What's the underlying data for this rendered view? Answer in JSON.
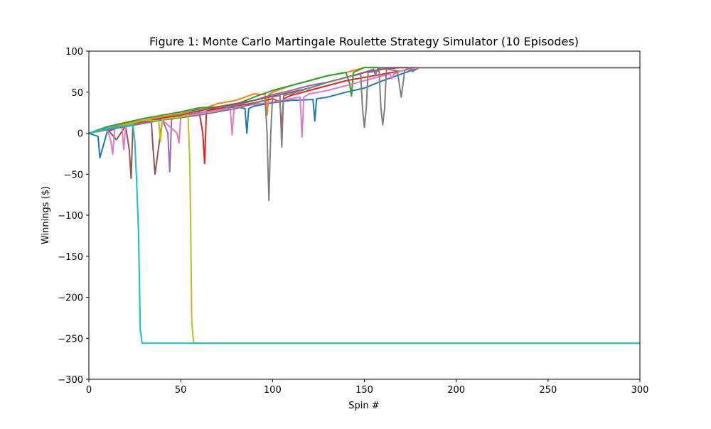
{
  "chart_data": {
    "type": "line",
    "title": "Figure 1: Monte Carlo Martingale Roulette Strategy Simulator (10 Episodes)",
    "xlabel": "Spin #",
    "ylabel": "Winnings ($)",
    "xlim": [
      0,
      300
    ],
    "ylim": [
      -300,
      100
    ],
    "x_ticks": [
      0,
      50,
      100,
      150,
      200,
      250,
      300
    ],
    "y_ticks": [
      -300,
      -250,
      -200,
      -150,
      -100,
      -50,
      0,
      50,
      100
    ],
    "x_tick_labels": [
      "0",
      "50",
      "100",
      "150",
      "200",
      "250",
      "300"
    ],
    "y_tick_labels": [
      "−300",
      "−250",
      "−200",
      "−150",
      "−100",
      "−50",
      "0",
      "50",
      "100"
    ],
    "grid": false,
    "legend": "none",
    "series": [
      {
        "color": "#1f77b4",
        "x": [
          0,
          5,
          6,
          10,
          14,
          15,
          20,
          25,
          30,
          40,
          50,
          60,
          70,
          80,
          85,
          86,
          87,
          90,
          100,
          110,
          122,
          123,
          124,
          130,
          140,
          150,
          160,
          175,
          180,
          300
        ],
        "y": [
          0,
          -4,
          -30,
          2,
          5,
          8,
          10,
          12,
          14,
          19,
          24,
          29,
          30,
          32,
          30,
          0,
          30,
          33,
          37,
          40,
          41,
          15,
          42,
          44,
          50,
          55,
          64,
          76,
          80,
          80
        ]
      },
      {
        "color": "#ff7f0e",
        "x": [
          0,
          10,
          20,
          30,
          40,
          50,
          60,
          70,
          80,
          90,
          96,
          97,
          98,
          100,
          110,
          120,
          130,
          140,
          150,
          160,
          170,
          180,
          300
        ],
        "y": [
          0,
          6,
          12,
          16,
          20,
          24,
          28,
          36,
          40,
          48,
          47,
          22,
          47,
          50,
          58,
          64,
          70,
          74,
          80,
          80,
          80,
          80,
          80
        ]
      },
      {
        "color": "#2ca02c",
        "x": [
          0,
          10,
          20,
          30,
          40,
          50,
          60,
          70,
          80,
          90,
          100,
          110,
          120,
          130,
          140,
          142,
          143,
          144,
          150,
          170,
          300
        ],
        "y": [
          0,
          8,
          13,
          18,
          22,
          26,
          31,
          32,
          35,
          44,
          52,
          58,
          64,
          70,
          74,
          60,
          45,
          74,
          80,
          80,
          80
        ]
      },
      {
        "color": "#d62728",
        "x": [
          0,
          10,
          20,
          30,
          40,
          50,
          60,
          62,
          63,
          64,
          70,
          80,
          90,
          100,
          104,
          105,
          106,
          110,
          120,
          130,
          140,
          150,
          160,
          170,
          180,
          300
        ],
        "y": [
          0,
          6,
          10,
          14,
          18,
          22,
          27,
          0,
          -37,
          27,
          30,
          33,
          37,
          42,
          38,
          5,
          42,
          46,
          52,
          58,
          64,
          68,
          72,
          76,
          80,
          80
        ]
      },
      {
        "color": "#9467bd",
        "x": [
          0,
          10,
          20,
          30,
          40,
          43,
          44,
          45,
          50,
          60,
          70,
          80,
          90,
          100,
          110,
          120,
          130,
          140,
          150,
          155,
          156,
          157,
          160,
          170,
          180,
          300
        ],
        "y": [
          0,
          5,
          9,
          13,
          17,
          0,
          -47,
          17,
          20,
          25,
          28,
          34,
          40,
          47,
          52,
          58,
          62,
          68,
          74,
          78,
          70,
          78,
          80,
          80,
          80,
          80
        ]
      },
      {
        "color": "#8c564b",
        "x": [
          0,
          10,
          15,
          20,
          22,
          23,
          24,
          30,
          34,
          35,
          36,
          40,
          50,
          60,
          70,
          80,
          90,
          100,
          110,
          120,
          130,
          140,
          150,
          160,
          170,
          300
        ],
        "y": [
          0,
          5,
          -8,
          9,
          -20,
          -55,
          10,
          12,
          15,
          -20,
          -50,
          16,
          22,
          27,
          32,
          36,
          40,
          45,
          50,
          55,
          62,
          68,
          74,
          78,
          80,
          80
        ]
      },
      {
        "color": "#e377c2",
        "x": [
          0,
          10,
          12,
          13,
          14,
          18,
          19,
          20,
          30,
          40,
          48,
          49,
          50,
          60,
          70,
          77,
          78,
          79,
          80,
          90,
          100,
          110,
          115,
          116,
          117,
          120,
          130,
          140,
          150,
          160,
          164,
          165,
          166,
          170,
          180,
          300
        ],
        "y": [
          0,
          5,
          -10,
          -26,
          5,
          8,
          -20,
          8,
          12,
          16,
          0,
          -12,
          20,
          24,
          28,
          30,
          -2,
          30,
          32,
          35,
          38,
          42,
          44,
          -5,
          44,
          48,
          52,
          58,
          64,
          70,
          72,
          66,
          72,
          76,
          80,
          80
        ]
      },
      {
        "color": "#7f7f7f",
        "x": [
          0,
          20,
          40,
          60,
          80,
          96,
          97,
          98,
          99,
          100,
          104,
          105,
          106,
          110,
          120,
          130,
          140,
          148,
          149,
          150,
          151,
          152,
          158,
          159,
          160,
          161,
          162,
          168,
          169,
          170,
          171,
          172,
          175,
          176,
          180,
          300
        ],
        "y": [
          0,
          8,
          16,
          22,
          30,
          40,
          0,
          -82,
          0,
          44,
          46,
          -17,
          46,
          48,
          55,
          62,
          68,
          72,
          30,
          7,
          30,
          74,
          76,
          30,
          10,
          30,
          78,
          76,
          60,
          44,
          60,
          77,
          80,
          75,
          80,
          80
        ]
      },
      {
        "color": "#bcbd22",
        "x": [
          0,
          10,
          20,
          30,
          38,
          39,
          40,
          50,
          54,
          55,
          56,
          57,
          300
        ],
        "y": [
          0,
          6,
          10,
          16,
          15,
          -10,
          17,
          20,
          22,
          -40,
          -230,
          -256,
          -256
        ]
      },
      {
        "color": "#17becf",
        "x": [
          0,
          5,
          10,
          15,
          20,
          24,
          25,
          26,
          27,
          28,
          29,
          300
        ],
        "y": [
          0,
          3,
          6,
          8,
          9,
          10,
          -10,
          -60,
          -120,
          -240,
          -256,
          -256
        ]
      }
    ]
  }
}
